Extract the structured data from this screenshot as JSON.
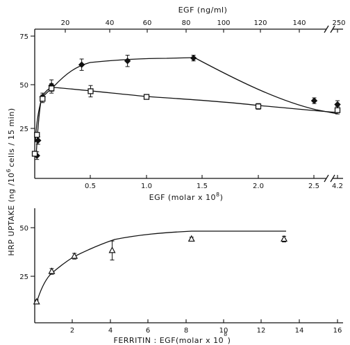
{
  "chart_data": [
    {
      "type": "line",
      "top_xlabel": "EGF (ng/ml)",
      "top_ticks": [
        "20",
        "40",
        "60",
        "80",
        "100",
        "120",
        "140",
        "250"
      ],
      "xlabel_main": "EGF (molar x 10",
      "xlabel_exp": "8",
      "xlabel_close": ")",
      "xticks": [
        "0.5",
        "1.0",
        "1.5",
        "2.0",
        "2.5",
        "4.2"
      ],
      "yticks": [
        "25",
        "50",
        "75"
      ],
      "ylim": [
        0,
        75
      ],
      "series": [
        {
          "marker": "diamond",
          "points": [
            {
              "x": 0.02,
              "y": 12,
              "e": 2
            },
            {
              "x": 0.03,
              "y": 20,
              "e": 2
            },
            {
              "x": 0.07,
              "y": 43,
              "e": 2
            },
            {
              "x": 0.15,
              "y": 49,
              "e": 3
            },
            {
              "x": 0.42,
              "y": 60,
              "e": 3
            },
            {
              "x": 0.83,
              "y": 62,
              "e": 3
            },
            {
              "x": 1.42,
              "y": 63.5,
              "e": 1.5
            },
            {
              "x": 2.5,
              "y": 41,
              "e": 1.5
            },
            {
              "x": 4.2,
              "y": 39,
              "e": 2
            }
          ]
        },
        {
          "marker": "square",
          "points": [
            {
              "x": 0.0,
              "y": 13
            },
            {
              "x": 0.02,
              "y": 23
            },
            {
              "x": 0.07,
              "y": 42,
              "e": 2
            },
            {
              "x": 0.15,
              "y": 47.5,
              "e": 2.5
            },
            {
              "x": 0.5,
              "y": 46,
              "e": 3
            },
            {
              "x": 1.0,
              "y": 43,
              "e": 1
            },
            {
              "x": 2.0,
              "y": 38,
              "e": 1.5
            },
            {
              "x": 4.2,
              "y": 36,
              "e": 2
            }
          ]
        }
      ]
    },
    {
      "type": "line",
      "xlabel_main": "FERRITIN : EGF(molar x 10",
      "xlabel_exp": "8",
      "xlabel_close": ")",
      "xticks": [
        "2",
        "4",
        "6",
        "8",
        "10",
        "12",
        "14",
        "16"
      ],
      "yticks": [
        "25",
        "50"
      ],
      "ylim": [
        0,
        50
      ],
      "series": [
        {
          "marker": "triangle",
          "points": [
            {
              "x": 0.1,
              "y": 11,
              "e": 1
            },
            {
              "x": 0.9,
              "y": 27,
              "e": 1.5
            },
            {
              "x": 2.1,
              "y": 35,
              "e": 1.5
            },
            {
              "x": 4.1,
              "y": 38,
              "e": 5
            },
            {
              "x": 8.3,
              "y": 44,
              "e": 1
            },
            {
              "x": 13.2,
              "y": 44,
              "e": 1.5
            }
          ]
        }
      ]
    }
  ],
  "ylabel": "HRP UPTAKE (ng /10",
  "ylabel_exp": "6",
  "ylabel_tail": "cells / 15 min)"
}
